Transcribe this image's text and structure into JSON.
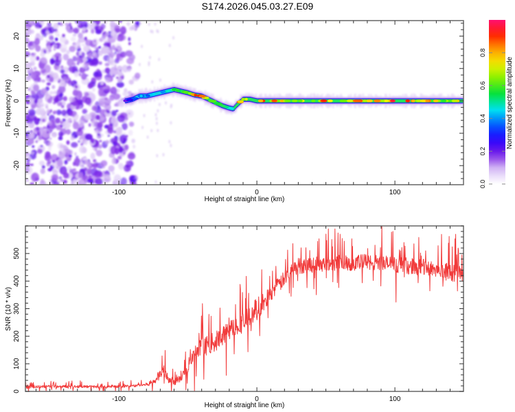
{
  "title": "S174.2026.045.03.27.E09",
  "chart_data": [
    {
      "type": "heatmap",
      "name": "spectrogram",
      "title": "S174.2026.045.03.27.E09",
      "xlabel": "Height of straight line (km)",
      "ylabel": "Frequency (Hz)",
      "xlim": [
        -167.7,
        149.7
      ],
      "ylim": [
        -25.9,
        24.8
      ],
      "xticks": [
        -100,
        0,
        100
      ],
      "yticks": [
        -20,
        -10,
        0,
        10,
        20
      ],
      "grid": false,
      "colorbar": {
        "label": "Normalized spectral amplitude",
        "range": [
          0,
          1
        ],
        "ticks": [
          "0.0",
          "0.2",
          "0.4",
          "0.6",
          "0.8"
        ],
        "colormap": [
          "#ffffff",
          "#d9c2f5",
          "#7a1fe6",
          "#2400ff",
          "#0060ff",
          "#00e6f0",
          "#00e040",
          "#7cf000",
          "#f0f000",
          "#ffa000",
          "#ff2000",
          "#ff1070"
        ]
      },
      "noise_region": {
        "x_from": -167.7,
        "x_to": -85,
        "peak_amplitude": 0.15
      },
      "signal_track": {
        "x": [
          -95,
          -90,
          -85,
          -80,
          -75,
          -70,
          -65,
          -60,
          -55,
          -50,
          -45,
          -40,
          -35,
          -30,
          -25,
          -20,
          -17,
          -15,
          -10,
          -5,
          0,
          10,
          20,
          30,
          40,
          50,
          60,
          70,
          80,
          90,
          100,
          110,
          120,
          130,
          140,
          149
        ],
        "freq_hz": [
          0,
          0.5,
          1.5,
          1.5,
          2.0,
          2.5,
          3.0,
          3.5,
          3.0,
          2.5,
          1.8,
          1.5,
          0.5,
          -0.5,
          -1.5,
          -2.2,
          -2.5,
          -1.5,
          0.5,
          0.5,
          0,
          0,
          0,
          0,
          0,
          0,
          0,
          0,
          0,
          0,
          0,
          0,
          0,
          0,
          0,
          0
        ],
        "amplitude": [
          0.25,
          0.3,
          0.4,
          0.45,
          0.5,
          0.5,
          0.55,
          0.6,
          0.6,
          0.7,
          0.85,
          0.9,
          0.75,
          0.65,
          0.6,
          0.55,
          0.5,
          0.7,
          0.85,
          0.9,
          0.95,
          0.85,
          0.8,
          0.75,
          0.8,
          0.85,
          0.75,
          0.8,
          0.85,
          0.8,
          0.9,
          0.95,
          0.8,
          0.75,
          0.7,
          0.95
        ]
      }
    },
    {
      "type": "line",
      "name": "snr",
      "xlabel": "Height of straight line (km)",
      "ylabel": "SNR (10 * v/v)",
      "xlim": [
        -167.7,
        149.7
      ],
      "ylim": [
        0,
        600
      ],
      "xticks": [
        -100,
        0,
        100
      ],
      "yticks": [
        0,
        100,
        200,
        300,
        400,
        500
      ],
      "grid": false,
      "color": "#f03030",
      "series": [
        {
          "name": "SNR",
          "x": [
            -167,
            -150,
            -130,
            -110,
            -90,
            -80,
            -75,
            -70,
            -68,
            -65,
            -62,
            -60,
            -55,
            -50,
            -45,
            -40,
            -35,
            -30,
            -25,
            -20,
            -15,
            -10,
            -5,
            0,
            5,
            10,
            15,
            20,
            25,
            30,
            40,
            50,
            60,
            70,
            80,
            90,
            100,
            110,
            120,
            130,
            140,
            149
          ],
          "y": [
            15,
            18,
            18,
            16,
            20,
            25,
            35,
            60,
            90,
            55,
            40,
            30,
            50,
            95,
            130,
            160,
            170,
            180,
            200,
            220,
            240,
            250,
            270,
            300,
            320,
            360,
            380,
            410,
            440,
            455,
            460,
            465,
            470,
            465,
            470,
            465,
            460,
            455,
            450,
            445,
            430,
            430
          ],
          "noise_amplitude": [
            8,
            8,
            8,
            8,
            8,
            10,
            20,
            35,
            40,
            35,
            25,
            20,
            30,
            45,
            55,
            60,
            60,
            60,
            60,
            60,
            60,
            65,
            70,
            70,
            60,
            55,
            50,
            45,
            45,
            50,
            50,
            50,
            50,
            50,
            50,
            50,
            50,
            50,
            50,
            50,
            55,
            55
          ]
        }
      ]
    }
  ]
}
